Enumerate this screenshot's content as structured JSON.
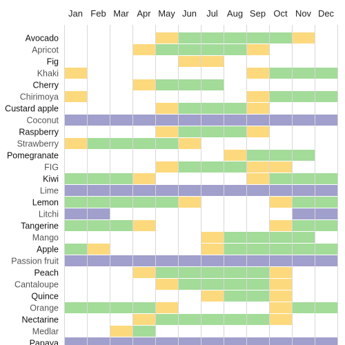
{
  "chart_data": {
    "type": "heatmap",
    "categories": [
      "Jan",
      "Feb",
      "Mar",
      "Apr",
      "May",
      "Jun",
      "Jul",
      "Aug",
      "Sep",
      "Oct",
      "Nov",
      "Dec"
    ],
    "colors": {
      "1": "#fdd97d",
      "2": "#a3db99",
      "3": "#a19fcc"
    },
    "label_colors": {
      "dark": "#111111",
      "light": "#555555"
    },
    "rows": [
      {
        "name": "Avocado",
        "style": "dark",
        "values": [
          0,
          0,
          0,
          0,
          1,
          2,
          2,
          2,
          2,
          2,
          1,
          0
        ]
      },
      {
        "name": "Apricot",
        "style": "light",
        "values": [
          0,
          0,
          0,
          1,
          2,
          2,
          2,
          2,
          1,
          0,
          0,
          0
        ]
      },
      {
        "name": "Fig",
        "style": "dark",
        "values": [
          0,
          0,
          0,
          0,
          0,
          1,
          1,
          0,
          0,
          0,
          0,
          0
        ]
      },
      {
        "name": "Khaki",
        "style": "light",
        "values": [
          1,
          0,
          0,
          0,
          0,
          0,
          0,
          0,
          1,
          2,
          2,
          2
        ]
      },
      {
        "name": "Cherry",
        "style": "dark",
        "values": [
          0,
          0,
          0,
          1,
          2,
          2,
          2,
          0,
          0,
          0,
          0,
          0
        ]
      },
      {
        "name": "Chirimoya",
        "style": "light",
        "values": [
          1,
          0,
          0,
          0,
          0,
          0,
          0,
          0,
          1,
          2,
          2,
          2
        ]
      },
      {
        "name": "Custard apple",
        "style": "dark",
        "values": [
          0,
          0,
          0,
          0,
          1,
          2,
          2,
          2,
          1,
          0,
          0,
          0
        ]
      },
      {
        "name": "Coconut",
        "style": "light",
        "values": [
          3,
          3,
          3,
          3,
          3,
          3,
          3,
          3,
          3,
          3,
          3,
          3
        ]
      },
      {
        "name": "Raspberry",
        "style": "dark",
        "values": [
          0,
          0,
          0,
          0,
          1,
          2,
          2,
          2,
          1,
          0,
          0,
          0
        ]
      },
      {
        "name": "Strawberry",
        "style": "light",
        "values": [
          1,
          2,
          2,
          2,
          2,
          1,
          0,
          0,
          0,
          0,
          0,
          0
        ]
      },
      {
        "name": "Pomegranate",
        "style": "dark",
        "values": [
          0,
          0,
          0,
          0,
          0,
          0,
          0,
          1,
          2,
          2,
          2,
          0
        ]
      },
      {
        "name": "FIG",
        "style": "light",
        "values": [
          0,
          0,
          0,
          0,
          1,
          2,
          2,
          2,
          1,
          1,
          0,
          0
        ]
      },
      {
        "name": "Kiwi",
        "style": "dark",
        "values": [
          2,
          2,
          2,
          1,
          0,
          0,
          0,
          0,
          1,
          2,
          2,
          2
        ]
      },
      {
        "name": "Lime",
        "style": "light",
        "values": [
          3,
          3,
          3,
          3,
          3,
          3,
          3,
          3,
          3,
          3,
          3,
          3
        ]
      },
      {
        "name": "Lemon",
        "style": "dark",
        "values": [
          2,
          2,
          2,
          2,
          2,
          1,
          0,
          0,
          0,
          1,
          2,
          2
        ]
      },
      {
        "name": "Litchi",
        "style": "light",
        "values": [
          3,
          3,
          0,
          0,
          0,
          0,
          0,
          0,
          0,
          0,
          3,
          3
        ]
      },
      {
        "name": "Tangerine",
        "style": "dark",
        "values": [
          2,
          2,
          2,
          1,
          0,
          0,
          0,
          0,
          0,
          1,
          2,
          2
        ]
      },
      {
        "name": "Mango",
        "style": "light",
        "values": [
          0,
          0,
          0,
          0,
          0,
          0,
          1,
          2,
          2,
          2,
          2,
          0
        ]
      },
      {
        "name": "Apple",
        "style": "dark",
        "values": [
          2,
          1,
          0,
          0,
          0,
          0,
          1,
          2,
          2,
          2,
          2,
          2
        ]
      },
      {
        "name": "Passion fruit",
        "style": "light",
        "values": [
          3,
          3,
          3,
          3,
          3,
          3,
          3,
          3,
          3,
          3,
          3,
          3
        ]
      },
      {
        "name": "Peach",
        "style": "dark",
        "values": [
          0,
          0,
          0,
          1,
          2,
          2,
          2,
          2,
          2,
          1,
          0,
          0
        ]
      },
      {
        "name": "Cantaloupe",
        "style": "light",
        "values": [
          0,
          0,
          0,
          0,
          1,
          2,
          2,
          2,
          2,
          1,
          0,
          0
        ]
      },
      {
        "name": "Quince",
        "style": "dark",
        "values": [
          0,
          0,
          0,
          0,
          0,
          0,
          1,
          2,
          2,
          1,
          0,
          0
        ]
      },
      {
        "name": "Orange",
        "style": "light",
        "values": [
          2,
          2,
          2,
          2,
          1,
          0,
          0,
          0,
          0,
          1,
          2,
          2
        ]
      },
      {
        "name": "Nectarine",
        "style": "dark",
        "values": [
          0,
          0,
          0,
          1,
          2,
          2,
          2,
          2,
          2,
          1,
          0,
          0
        ]
      },
      {
        "name": "Medlar",
        "style": "light",
        "values": [
          0,
          0,
          1,
          2,
          0,
          0,
          0,
          0,
          0,
          0,
          0,
          0
        ]
      },
      {
        "name": "Papaya",
        "style": "dark",
        "values": [
          3,
          3,
          3,
          3,
          3,
          3,
          3,
          3,
          3,
          3,
          3,
          3
        ]
      }
    ]
  }
}
